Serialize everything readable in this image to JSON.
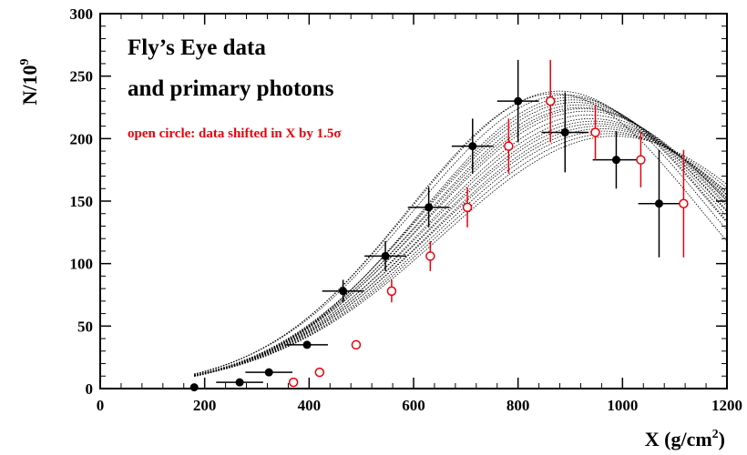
{
  "chart_data": {
    "type": "scatter",
    "xlabel": "X (g/cm",
    "xlabel_sup": "2",
    "xlabel_tail": ")",
    "ylabel": "N/10",
    "ylabel_sup": "9",
    "xlim": [
      0,
      1200
    ],
    "ylim": [
      0,
      300
    ],
    "xticks": [
      0,
      200,
      400,
      600,
      800,
      1000,
      1200
    ],
    "yticks": [
      0,
      50,
      100,
      150,
      200,
      250,
      300
    ],
    "xtick_labels": [
      "0",
      "200",
      "400",
      "600",
      "800",
      "1000",
      "1200"
    ],
    "ytick_labels": [
      "0",
      "50",
      "100",
      "150",
      "200",
      "250",
      "300"
    ],
    "grid": false,
    "annotations": {
      "line1": "Fly’s Eye data",
      "line2": "and primary photons",
      "note": "open circle: data shifted in X by 1.5σ"
    },
    "colors": {
      "data": "#000000",
      "shifted": "#e8000b",
      "simulation": "#000000"
    },
    "series": [
      {
        "marker": "filled-circle",
        "color": "#000000",
        "points": [
          {
            "x": 180,
            "y": 1,
            "xerr": 0,
            "yerr": 0
          },
          {
            "x": 267,
            "y": 5,
            "xerr": 45,
            "yerr": 0
          },
          {
            "x": 323,
            "y": 13,
            "xerr": 45,
            "yerr": 0
          },
          {
            "x": 396,
            "y": 35,
            "xerr": 40,
            "yerr": 0
          },
          {
            "x": 465,
            "y": 78,
            "xerr": 40,
            "yerr": 9
          },
          {
            "x": 546,
            "y": 106,
            "xerr": 40,
            "yerr": 12
          },
          {
            "x": 629,
            "y": 145,
            "xerr": 40,
            "yerr": 16
          },
          {
            "x": 713,
            "y": 194,
            "xerr": 40,
            "yerr": 22
          },
          {
            "x": 800,
            "y": 230,
            "xerr": 40,
            "yerr": 33
          },
          {
            "x": 890,
            "y": 205,
            "xerr": 45,
            "yerr": 32
          },
          {
            "x": 988,
            "y": 183,
            "xerr": 45,
            "yerr": 23
          },
          {
            "x": 1070,
            "y": 148,
            "xerr": 40,
            "yerr": 43
          }
        ]
      },
      {
        "marker": "open-circle",
        "color": "#e8000b",
        "points": [
          {
            "x": 370,
            "y": 5,
            "yerr": 0
          },
          {
            "x": 420,
            "y": 13,
            "yerr": 0
          },
          {
            "x": 490,
            "y": 35,
            "yerr": 0
          },
          {
            "x": 558,
            "y": 78,
            "yerr": 9
          },
          {
            "x": 632,
            "y": 106,
            "yerr": 12
          },
          {
            "x": 703,
            "y": 145,
            "yerr": 16
          },
          {
            "x": 782,
            "y": 194,
            "yerr": 22
          },
          {
            "x": 862,
            "y": 230,
            "yerr": 33
          },
          {
            "x": 948,
            "y": 205,
            "yerr": 22
          },
          {
            "x": 1035,
            "y": 183,
            "yerr": 22
          },
          {
            "x": 1117,
            "y": 148,
            "yerr": 43
          }
        ]
      }
    ],
    "simulation_curves": {
      "style": "dotted",
      "color": "#000000",
      "curves": [
        {
          "peak_x": 870,
          "peak_y": 236,
          "width": 280
        },
        {
          "peak_x": 880,
          "peak_y": 238,
          "width": 285
        },
        {
          "peak_x": 890,
          "peak_y": 235,
          "width": 290
        },
        {
          "peak_x": 900,
          "peak_y": 233,
          "width": 285
        },
        {
          "peak_x": 905,
          "peak_y": 231,
          "width": 290
        },
        {
          "peak_x": 910,
          "peak_y": 229,
          "width": 295
        },
        {
          "peak_x": 915,
          "peak_y": 227,
          "width": 295
        },
        {
          "peak_x": 920,
          "peak_y": 225,
          "width": 300
        },
        {
          "peak_x": 925,
          "peak_y": 224,
          "width": 300
        },
        {
          "peak_x": 930,
          "peak_y": 222,
          "width": 305
        },
        {
          "peak_x": 935,
          "peak_y": 219,
          "width": 305
        },
        {
          "peak_x": 940,
          "peak_y": 216,
          "width": 310
        },
        {
          "peak_x": 945,
          "peak_y": 214,
          "width": 310
        },
        {
          "peak_x": 950,
          "peak_y": 212,
          "width": 315
        },
        {
          "peak_x": 955,
          "peak_y": 210,
          "width": 315
        },
        {
          "peak_x": 960,
          "peak_y": 208,
          "width": 320
        },
        {
          "peak_x": 965,
          "peak_y": 206,
          "width": 320
        },
        {
          "peak_x": 975,
          "peak_y": 204,
          "width": 325
        },
        {
          "peak_x": 985,
          "peak_y": 202,
          "width": 330
        }
      ]
    }
  }
}
